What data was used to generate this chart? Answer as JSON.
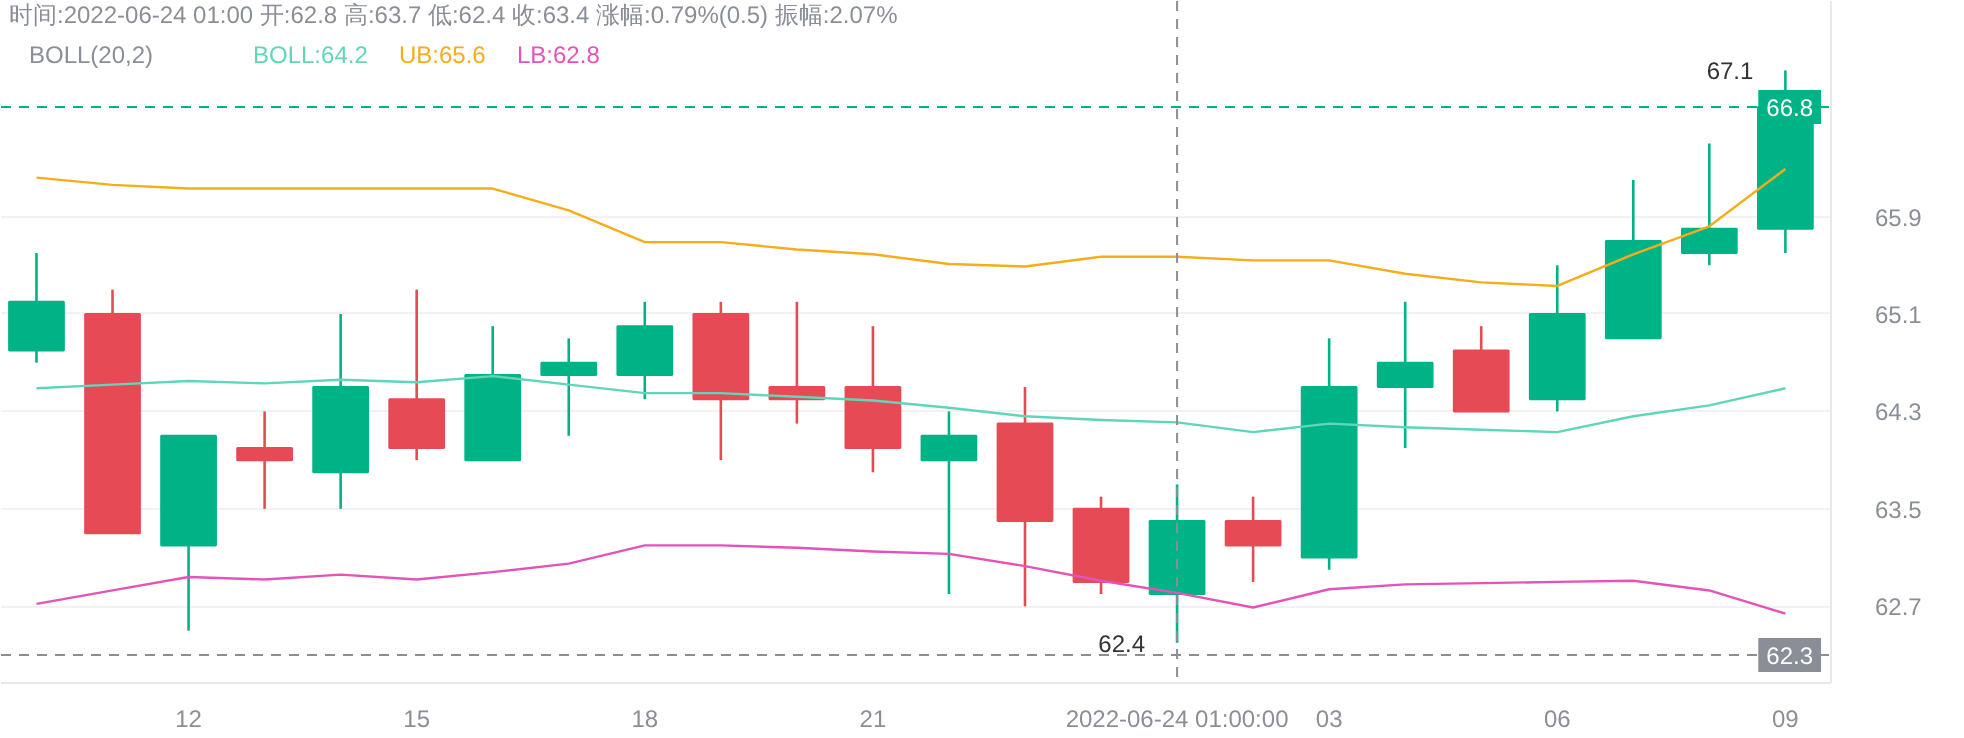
{
  "chart_data": {
    "type": "candlestick",
    "title": "时间:2022-06-24 01:00 开:62.8 高:63.7 低:62.4 收:63.4 涨幅:0.79%(0.5) 振幅:2.07%",
    "subtitle": "BOLL(20,2)",
    "x": [
      "2022-06-23T10:00",
      "2022-06-23T11:00",
      "2022-06-23T12:00",
      "2022-06-23T13:00",
      "2022-06-23T14:00",
      "2022-06-23T15:00",
      "2022-06-23T16:00",
      "2022-06-23T17:00",
      "2022-06-23T18:00",
      "2022-06-23T19:00",
      "2022-06-23T20:00",
      "2022-06-23T21:00",
      "2022-06-23T22:00",
      "2022-06-23T23:00",
      "2022-06-24T00:00",
      "2022-06-24T01:00",
      "2022-06-24T02:00",
      "2022-06-24T03:00",
      "2022-06-24T04:00",
      "2022-06-24T05:00",
      "2022-06-24T06:00",
      "2022-06-24T07:00",
      "2022-06-24T08:00",
      "2022-06-24T09:00"
    ],
    "ohlc": [
      [
        64.8,
        65.6,
        64.7,
        65.2
      ],
      [
        65.1,
        65.3,
        63.3,
        63.3
      ],
      [
        63.2,
        64.1,
        62.5,
        64.1
      ],
      [
        64.0,
        64.3,
        63.5,
        63.9
      ],
      [
        63.8,
        65.1,
        63.5,
        64.5
      ],
      [
        64.4,
        65.3,
        63.9,
        64.0
      ],
      [
        63.9,
        65.0,
        63.9,
        64.6
      ],
      [
        64.6,
        64.9,
        64.1,
        64.7
      ],
      [
        64.6,
        65.2,
        64.4,
        65.0
      ],
      [
        65.1,
        65.2,
        63.9,
        64.4
      ],
      [
        64.5,
        65.2,
        64.2,
        64.4
      ],
      [
        64.5,
        65.0,
        63.8,
        64.0
      ],
      [
        63.9,
        64.3,
        62.8,
        64.1
      ],
      [
        64.2,
        64.5,
        62.7,
        63.4
      ],
      [
        63.5,
        63.6,
        62.8,
        62.9
      ],
      [
        62.8,
        63.7,
        62.4,
        63.4
      ],
      [
        63.4,
        63.6,
        62.9,
        63.2
      ],
      [
        63.1,
        64.9,
        63.0,
        64.5
      ],
      [
        64.5,
        65.2,
        64.0,
        64.7
      ],
      [
        64.8,
        65.0,
        64.3,
        64.3
      ],
      [
        64.4,
        65.5,
        64.3,
        65.1
      ],
      [
        64.9,
        66.2,
        64.9,
        65.7
      ],
      [
        65.6,
        66.5,
        65.5,
        65.8
      ],
      [
        65.8,
        67.1,
        65.6,
        66.8
      ]
    ],
    "colors": [
      "#00b386",
      "#e64b55",
      "#00b386",
      "#e64b55",
      "#00b386",
      "#e64b55",
      "#00b386",
      "#00b386",
      "#00b386",
      "#e64b55",
      "#e64b55",
      "#e64b55",
      "#00b386",
      "#e64b55",
      "#e64b55",
      "#00b386",
      "#e64b55",
      "#00b386",
      "#00b386",
      "#e64b55",
      "#00b386",
      "#00b386",
      "#00b386",
      "#00b386"
    ],
    "series": [
      {
        "name": "BOLL:64.2",
        "type": "line",
        "color": "#5fd6b9",
        "values": [
          64.49,
          64.52,
          64.55,
          64.53,
          64.56,
          64.54,
          64.59,
          64.52,
          64.45,
          64.45,
          64.42,
          64.39,
          64.33,
          64.26,
          64.23,
          64.21,
          64.13,
          64.2,
          64.17,
          64.15,
          64.13,
          64.26,
          64.35,
          64.49
        ]
      },
      {
        "name": "UB:65.6",
        "type": "line",
        "color": "#f5ad1b",
        "values": [
          66.22,
          66.16,
          66.13,
          66.13,
          66.13,
          66.13,
          66.13,
          65.95,
          65.69,
          65.69,
          65.63,
          65.59,
          65.51,
          65.49,
          65.57,
          65.57,
          65.54,
          65.54,
          65.43,
          65.36,
          65.33,
          65.59,
          65.82,
          66.29
        ]
      },
      {
        "name": "LB:62.8",
        "type": "line",
        "color": "#e454b8",
        "values": [
          62.72,
          62.83,
          62.94,
          62.92,
          62.96,
          62.92,
          62.98,
          63.05,
          63.2,
          63.2,
          63.18,
          63.15,
          63.13,
          63.03,
          62.91,
          62.81,
          62.69,
          62.84,
          62.88,
          62.89,
          62.9,
          62.91,
          62.83,
          62.64
        ]
      }
    ],
    "xlim": [
      "2022-06-23T09:32",
      "2022-06-24T09:36"
    ],
    "xticks": [
      {
        "value": "2022-06-23T12:00",
        "label": "12"
      },
      {
        "value": "2022-06-23T15:00",
        "label": "15"
      },
      {
        "value": "2022-06-23T18:00",
        "label": "18"
      },
      {
        "value": "2022-06-23T21:00",
        "label": "21"
      },
      {
        "value": "2022-06-24T03:00",
        "label": "03"
      },
      {
        "value": "2022-06-24T06:00",
        "label": "06"
      },
      {
        "value": "2022-06-24T09:00",
        "label": "09"
      }
    ],
    "ylim": [
      62.07,
      67.67
    ],
    "yticks": [
      62.7,
      63.5,
      64.3,
      65.1,
      65.9
    ],
    "grid": true,
    "ref_lines": [
      {
        "axis": "y",
        "value": 66.8,
        "label": "66.8",
        "color": "#00b386",
        "line_style": "dashed"
      },
      {
        "axis": "y",
        "value": 62.3,
        "label": "62.3",
        "color": "#8a8e96",
        "line_style": "dashed"
      },
      {
        "axis": "x",
        "value": "2022-06-24T01:00",
        "label": "2022-06-24 01:00:00",
        "color": "#8a8e96",
        "line_style": "dashed"
      }
    ],
    "annotations": [
      {
        "text": "67.1",
        "x": "2022-06-24T09:00",
        "y": 67.1
      },
      {
        "text": "62.4",
        "x": "2022-06-24T01:00",
        "y": 62.4
      }
    ]
  }
}
